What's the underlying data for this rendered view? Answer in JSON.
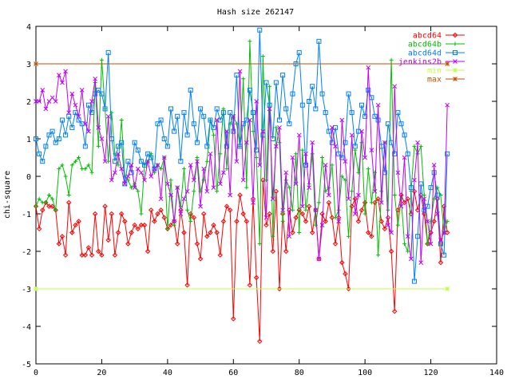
{
  "chart_data": {
    "type": "line",
    "title": "Hash size 262147",
    "xlabel": "",
    "ylabel": "chi-square",
    "xlim": [
      0,
      140
    ],
    "ylim": [
      -5,
      4
    ],
    "x_ticks": [
      0,
      20,
      40,
      60,
      80,
      100,
      120,
      140
    ],
    "y_ticks": [
      -5,
      -4,
      -3,
      -2,
      -1,
      0,
      1,
      2,
      3,
      4
    ],
    "grid": false,
    "legend_position": "top-right",
    "series": [
      {
        "name": "abcd64",
        "color": "#ff0000",
        "marker": "diamond",
        "x": [
          0,
          1,
          2,
          3,
          4,
          5,
          6,
          7,
          8,
          9,
          10,
          11,
          12,
          13,
          14,
          15,
          16,
          17,
          18,
          19,
          20,
          21,
          22,
          23,
          24,
          25,
          26,
          27,
          28,
          29,
          30,
          31,
          32,
          33,
          34,
          35,
          36,
          37,
          38,
          39,
          40,
          41,
          42,
          43,
          44,
          45,
          46,
          47,
          48,
          49,
          50,
          51,
          52,
          53,
          54,
          55,
          56,
          57,
          58,
          59,
          60,
          61,
          62,
          63,
          64,
          65,
          66,
          67,
          68,
          69,
          70,
          71,
          72,
          73,
          74,
          75,
          76,
          77,
          78,
          79,
          80,
          81,
          82,
          83,
          84,
          85,
          86,
          87,
          88,
          89,
          90,
          91,
          92,
          93,
          94,
          95,
          96,
          97,
          98,
          99,
          100,
          101,
          102,
          103,
          104,
          105,
          106,
          107,
          108,
          109,
          110,
          111,
          112,
          113,
          114,
          115,
          116,
          117,
          118,
          119,
          120,
          121,
          122,
          123,
          124,
          125
        ],
        "values": [
          -0.8,
          -1.4,
          -0.9,
          -0.7,
          -0.8,
          -0.8,
          -0.9,
          -1.8,
          -1.6,
          -2.1,
          -0.7,
          -1.5,
          -1.3,
          -1.2,
          -2.1,
          -2.1,
          -1.9,
          -2.1,
          -1.0,
          -2.0,
          -2.1,
          -0.8,
          -1.7,
          -1.0,
          -2.1,
          -1.5,
          -1.0,
          -1.2,
          -1.8,
          -1.5,
          -1.3,
          -1.4,
          -1.3,
          -1.3,
          -2.0,
          -0.9,
          -1.2,
          -1.0,
          -0.9,
          -1.1,
          -1.4,
          -1.3,
          -1.2,
          -1.8,
          -0.9,
          -1.5,
          -2.9,
          -1.0,
          -1.1,
          -1.8,
          -2.2,
          -1.0,
          -1.6,
          -1.5,
          -1.3,
          -1.5,
          -2.1,
          -1.2,
          -0.8,
          -0.9,
          -3.8,
          -1.2,
          -0.5,
          -1.0,
          -1.2,
          -2.9,
          -0.6,
          -2.7,
          -4.4,
          -0.1,
          -1.3,
          -1.0,
          -2.0,
          -0.4,
          -3.0,
          -1.0,
          -2.0,
          -0.9,
          -1.5,
          -1.1,
          -0.9,
          -1.0,
          -1.2,
          -0.8,
          -1.5,
          -0.9,
          -2.2,
          -1.0,
          -1.2,
          -0.7,
          -1.1,
          -1.8,
          -1.1,
          -2.3,
          -2.6,
          -3.0,
          -0.8,
          -0.6,
          -1.2,
          -0.9,
          -0.7,
          -1.5,
          -1.6,
          -0.7,
          -0.6,
          -1.2,
          -1.4,
          -1.1,
          -2.0,
          -3.6,
          -0.9,
          -0.5,
          -0.7,
          -0.6,
          -1.0,
          -0.4,
          -0.9,
          -0.5,
          -1.0,
          -1.8,
          -1.5,
          -1.2,
          -0.6,
          -2.3,
          -0.8,
          -1.5
        ]
      },
      {
        "name": "abcd64b",
        "color": "#00c000",
        "marker": "plus",
        "x": [
          0,
          1,
          2,
          3,
          4,
          5,
          6,
          7,
          8,
          9,
          10,
          11,
          12,
          13,
          14,
          15,
          16,
          17,
          18,
          19,
          20,
          21,
          22,
          23,
          24,
          25,
          26,
          27,
          28,
          29,
          30,
          31,
          32,
          33,
          34,
          35,
          36,
          37,
          38,
          39,
          40,
          41,
          42,
          43,
          44,
          45,
          46,
          47,
          48,
          49,
          50,
          51,
          52,
          53,
          54,
          55,
          56,
          57,
          58,
          59,
          60,
          61,
          62,
          63,
          64,
          65,
          66,
          67,
          68,
          69,
          70,
          71,
          72,
          73,
          74,
          75,
          76,
          77,
          78,
          79,
          80,
          81,
          82,
          83,
          84,
          85,
          86,
          87,
          88,
          89,
          90,
          91,
          92,
          93,
          94,
          95,
          96,
          97,
          98,
          99,
          100,
          101,
          102,
          103,
          104,
          105,
          106,
          107,
          108,
          109,
          110,
          111,
          112,
          113,
          114,
          115,
          116,
          117,
          118,
          119,
          120,
          121,
          122,
          123,
          124,
          125
        ],
        "values": [
          -0.8,
          -0.6,
          -0.7,
          -0.7,
          -0.5,
          -0.6,
          -0.9,
          0.2,
          0.3,
          0.0,
          -0.5,
          0.3,
          0.4,
          0.5,
          0.2,
          0.2,
          0.3,
          0.1,
          2.5,
          0.8,
          3.1,
          1.8,
          0.4,
          1.7,
          0.6,
          0.3,
          1.5,
          0.0,
          -0.1,
          -0.3,
          -0.2,
          -0.4,
          -1.0,
          0.3,
          0.4,
          0.6,
          0.1,
          0.3,
          0.2,
          0.5,
          -1.4,
          -0.1,
          -1.3,
          -0.3,
          -0.8,
          0.2,
          -0.9,
          -1.2,
          -0.4,
          0.5,
          -0.4,
          -0.1,
          0.4,
          1.5,
          1.1,
          -0.4,
          0.6,
          1.8,
          0.2,
          1.4,
          1.6,
          1.4,
          0.8,
          2.6,
          -0.3,
          3.6,
          1.2,
          0.5,
          -1.8,
          3.2,
          -0.1,
          2.4,
          -1.6,
          1.3,
          0.9,
          -1.2,
          -0.1,
          -0.3,
          -0.9,
          0.6,
          -1.5,
          0.7,
          -0.9,
          -0.2,
          0.6,
          -1.3,
          -0.7,
          0.5,
          -0.4,
          -0.3,
          0.3,
          -1.1,
          -0.9,
          0.0,
          -0.1,
          -1.6,
          -0.4,
          0.7,
          0.1,
          0.9,
          -1.0,
          0.2,
          -0.7,
          0.1,
          -2.1,
          -0.4,
          0.9,
          -0.9,
          3.1,
          -0.5,
          -1.3,
          -0.6,
          -1.8,
          -2.0,
          -0.4,
          0.8,
          0.6,
          0.8,
          -0.5,
          -1.8,
          -1.2,
          -0.6,
          -0.3,
          -0.5,
          -1.5,
          -1.2
        ]
      },
      {
        "name": "abcd64d",
        "color": "#0080ff",
        "marker": "square",
        "x": [
          0,
          1,
          2,
          3,
          4,
          5,
          6,
          7,
          8,
          9,
          10,
          11,
          12,
          13,
          14,
          15,
          16,
          17,
          18,
          19,
          20,
          21,
          22,
          23,
          24,
          25,
          26,
          27,
          28,
          29,
          30,
          31,
          32,
          33,
          34,
          35,
          36,
          37,
          38,
          39,
          40,
          41,
          42,
          43,
          44,
          45,
          46,
          47,
          48,
          49,
          50,
          51,
          52,
          53,
          54,
          55,
          56,
          57,
          58,
          59,
          60,
          61,
          62,
          63,
          64,
          65,
          66,
          67,
          68,
          69,
          70,
          71,
          72,
          73,
          74,
          75,
          76,
          77,
          78,
          79,
          80,
          81,
          82,
          83,
          84,
          85,
          86,
          87,
          88,
          89,
          90,
          91,
          92,
          93,
          94,
          95,
          96,
          97,
          98,
          99,
          100,
          101,
          102,
          103,
          104,
          105,
          106,
          107,
          108,
          109,
          110,
          111,
          112,
          113,
          114,
          115,
          116,
          117,
          118,
          119,
          120,
          121,
          122,
          123,
          124,
          125
        ],
        "values": [
          1.0,
          0.6,
          0.4,
          0.8,
          1.1,
          1.2,
          0.9,
          1.0,
          1.5,
          1.1,
          1.6,
          1.3,
          1.7,
          1.5,
          1.4,
          0.8,
          1.9,
          1.7,
          2.2,
          2.3,
          2.2,
          1.8,
          3.3,
          1.0,
          0.4,
          0.8,
          0.9,
          -0.2,
          0.4,
          0.1,
          0.9,
          0.7,
          0.4,
          0.3,
          0.6,
          0.5,
          0.2,
          1.4,
          1.5,
          1.0,
          0.8,
          1.8,
          1.2,
          1.6,
          0.4,
          1.7,
          1.1,
          2.3,
          1.4,
          0.9,
          1.8,
          1.6,
          0.8,
          1.5,
          1.3,
          1.8,
          1.5,
          1.7,
          0.8,
          1.7,
          1.2,
          2.7,
          0.8,
          1.4,
          1.5,
          2.3,
          1.7,
          0.7,
          3.9,
          1.1,
          2.5,
          1.9,
          1.0,
          2.5,
          1.5,
          2.7,
          1.8,
          1.4,
          2.2,
          3.0,
          3.3,
          1.9,
          0.3,
          2.0,
          2.4,
          1.8,
          3.6,
          2.2,
          1.7,
          1.2,
          0.9,
          1.3,
          0.6,
          0.5,
          0.9,
          2.2,
          1.7,
          0.8,
          1.2,
          1.9,
          1.6,
          2.3,
          2.1,
          1.6,
          1.5,
          0.8,
          0.1,
          1.4,
          0.9,
          0.6,
          1.7,
          1.4,
          1.1,
          0.6,
          -0.3,
          -2.8,
          -1.6,
          -0.2,
          -0.9,
          -0.8,
          -0.3,
          0.1,
          -0.5,
          -1.8,
          -2.1,
          0.6
        ]
      },
      {
        "name": "jenkins2b",
        "color": "#c000ff",
        "marker": "cross",
        "x": [
          0,
          1,
          2,
          3,
          4,
          5,
          6,
          7,
          8,
          9,
          10,
          11,
          12,
          13,
          14,
          15,
          16,
          17,
          18,
          19,
          20,
          21,
          22,
          23,
          24,
          25,
          26,
          27,
          28,
          29,
          30,
          31,
          32,
          33,
          34,
          35,
          36,
          37,
          38,
          39,
          40,
          41,
          42,
          43,
          44,
          45,
          46,
          47,
          48,
          49,
          50,
          51,
          52,
          53,
          54,
          55,
          56,
          57,
          58,
          59,
          60,
          61,
          62,
          63,
          64,
          65,
          66,
          67,
          68,
          69,
          70,
          71,
          72,
          73,
          74,
          75,
          76,
          77,
          78,
          79,
          80,
          81,
          82,
          83,
          84,
          85,
          86,
          87,
          88,
          89,
          90,
          91,
          92,
          93,
          94,
          95,
          96,
          97,
          98,
          99,
          100,
          101,
          102,
          103,
          104,
          105,
          106,
          107,
          108,
          109,
          110,
          111,
          112,
          113,
          114,
          115,
          116,
          117,
          118,
          119,
          120,
          121,
          122,
          123,
          124,
          125
        ],
        "values": [
          2.0,
          2.0,
          2.3,
          1.8,
          2.0,
          2.1,
          2.0,
          2.7,
          2.5,
          2.8,
          1.7,
          2.2,
          1.9,
          1.6,
          2.3,
          1.4,
          1.2,
          2.0,
          2.6,
          1.3,
          1.0,
          0.4,
          1.6,
          -0.1,
          0.1,
          0.6,
          0.2,
          -0.2,
          0.0,
          0.3,
          -0.3,
          0.2,
          0.1,
          -0.1,
          0.4,
          0.0,
          0.2,
          0.3,
          -0.6,
          0.5,
          -0.2,
          -0.5,
          -1.2,
          -0.3,
          -1.0,
          -0.6,
          -0.4,
          0.3,
          -0.1,
          0.4,
          -0.8,
          0.2,
          -0.4,
          0.6,
          -0.3,
          1.5,
          -0.2,
          0.1,
          1.2,
          -0.5,
          1.6,
          0.4,
          2.8,
          -0.1,
          0.9,
          1.5,
          -0.7,
          2.0,
          0.3,
          1.2,
          -1.1,
          1.8,
          -0.6,
          0.8,
          1.3,
          -0.9,
          0.1,
          -1.6,
          0.5,
          -0.2,
          1.1,
          -0.8,
          0.6,
          -0.3,
          0.9,
          -0.9,
          -2.2,
          -1.3,
          0.3,
          -0.5,
          1.3,
          0.8,
          -1.2,
          1.5,
          0.4,
          -0.6,
          1.1,
          -1.0,
          -0.5,
          1.2,
          0.5,
          2.9,
          0.7,
          -0.4,
          1.9,
          -0.7,
          0.9,
          -1.3,
          -1.5,
          2.4,
          0.1,
          -0.8,
          0.5,
          -1.6,
          -2.2,
          -0.1,
          0.9,
          -2.3,
          -0.6,
          -1.2,
          -1.8,
          0.3,
          -1.0,
          -1.7,
          -1.5,
          1.9
        ]
      },
      {
        "name": "min",
        "color": "#c0ff40",
        "marker": "asterisk",
        "x": [
          0,
          125
        ],
        "values": [
          -3,
          -3
        ]
      },
      {
        "name": "max",
        "color": "#c05000",
        "marker": "asterisk",
        "x": [
          0,
          125
        ],
        "values": [
          3,
          3
        ]
      }
    ]
  }
}
